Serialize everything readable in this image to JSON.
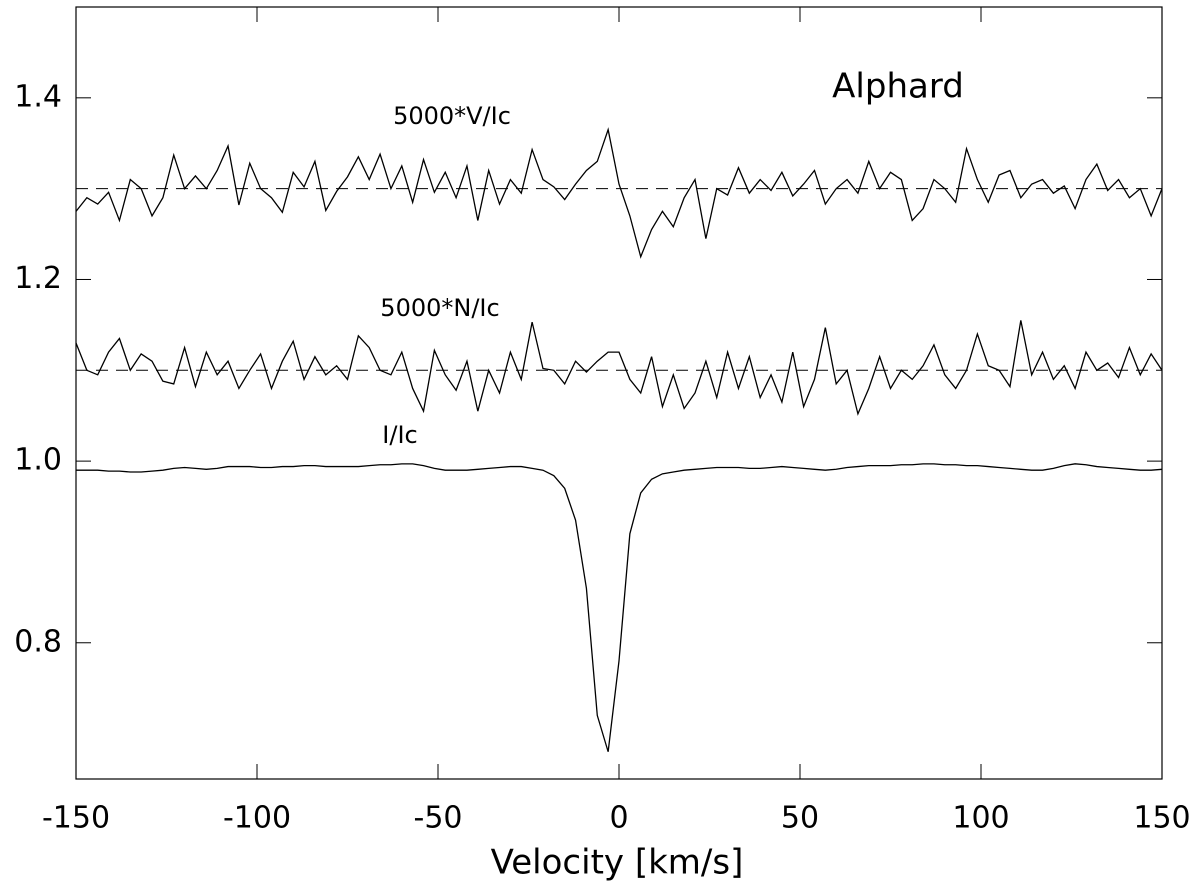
{
  "chart_data": {
    "type": "line",
    "title": "Alphard",
    "xlabel": "Velocity [km/s]",
    "xlim": [
      -150,
      150
    ],
    "ylim": [
      0.65,
      1.5
    ],
    "xticks": [
      -150,
      -100,
      -50,
      0,
      50,
      100,
      150
    ],
    "yticks": [
      0.8,
      {
        "value": 1,
        "label": "1.0"
      },
      1.2,
      1.4
    ],
    "reference_lines": [
      1.3,
      1.1
    ],
    "x": [
      -150,
      -147,
      -144,
      -141,
      -138,
      -135,
      -132,
      -129,
      -126,
      -123,
      -120,
      -117,
      -114,
      -111,
      -108,
      -105,
      -102,
      -99,
      -96,
      -93,
      -90,
      -87,
      -84,
      -81,
      -78,
      -75,
      -72,
      -69,
      -66,
      -63,
      -60,
      -57,
      -54,
      -51,
      -48,
      -45,
      -42,
      -39,
      -36,
      -33,
      -30,
      -27,
      -24,
      -21,
      -18,
      -15,
      -12,
      -9,
      -6,
      -3,
      0,
      3,
      6,
      9,
      12,
      15,
      18,
      21,
      24,
      27,
      30,
      33,
      36,
      39,
      42,
      45,
      48,
      51,
      54,
      57,
      60,
      63,
      66,
      69,
      72,
      75,
      78,
      81,
      84,
      87,
      90,
      93,
      96,
      99,
      102,
      105,
      108,
      111,
      114,
      117,
      120,
      123,
      126,
      129,
      132,
      135,
      138,
      141,
      144,
      147,
      150
    ],
    "series": [
      {
        "name": "5000*V/Ic",
        "color": "#000000",
        "values": [
          1.275,
          1.29,
          1.283,
          1.296,
          1.265,
          1.31,
          1.3,
          1.27,
          1.29,
          1.337,
          1.3,
          1.314,
          1.3,
          1.32,
          1.347,
          1.282,
          1.328,
          1.3,
          1.29,
          1.274,
          1.318,
          1.302,
          1.33,
          1.276,
          1.297,
          1.313,
          1.335,
          1.31,
          1.338,
          1.3,
          1.325,
          1.285,
          1.332,
          1.296,
          1.318,
          1.29,
          1.325,
          1.265,
          1.32,
          1.283,
          1.31,
          1.295,
          1.343,
          1.31,
          1.302,
          1.288,
          1.305,
          1.32,
          1.33,
          1.365,
          1.305,
          1.27,
          1.225,
          1.255,
          1.275,
          1.258,
          1.29,
          1.31,
          1.245,
          1.3,
          1.293,
          1.323,
          1.295,
          1.31,
          1.298,
          1.318,
          1.292,
          1.305,
          1.32,
          1.283,
          1.3,
          1.31,
          1.295,
          1.33,
          1.3,
          1.318,
          1.31,
          1.265,
          1.278,
          1.31,
          1.3,
          1.285,
          1.344,
          1.31,
          1.285,
          1.315,
          1.32,
          1.29,
          1.305,
          1.31,
          1.295,
          1.303,
          1.278,
          1.31,
          1.327,
          1.298,
          1.31,
          1.29,
          1.3,
          1.27,
          1.3
        ]
      },
      {
        "name": "5000*N/Ic",
        "color": "#000000",
        "values": [
          1.13,
          1.1,
          1.095,
          1.12,
          1.135,
          1.1,
          1.118,
          1.11,
          1.088,
          1.085,
          1.125,
          1.082,
          1.12,
          1.095,
          1.11,
          1.08,
          1.1,
          1.118,
          1.08,
          1.11,
          1.132,
          1.09,
          1.115,
          1.095,
          1.105,
          1.09,
          1.138,
          1.125,
          1.1,
          1.095,
          1.12,
          1.08,
          1.055,
          1.122,
          1.095,
          1.078,
          1.11,
          1.055,
          1.1,
          1.075,
          1.12,
          1.09,
          1.153,
          1.102,
          1.1,
          1.085,
          1.11,
          1.098,
          1.11,
          1.12,
          1.12,
          1.09,
          1.075,
          1.115,
          1.06,
          1.095,
          1.058,
          1.075,
          1.11,
          1.07,
          1.12,
          1.08,
          1.115,
          1.07,
          1.095,
          1.065,
          1.12,
          1.06,
          1.09,
          1.147,
          1.085,
          1.1,
          1.052,
          1.08,
          1.115,
          1.08,
          1.1,
          1.09,
          1.105,
          1.128,
          1.095,
          1.08,
          1.1,
          1.14,
          1.105,
          1.1,
          1.082,
          1.155,
          1.095,
          1.12,
          1.09,
          1.105,
          1.08,
          1.12,
          1.1,
          1.108,
          1.092,
          1.125,
          1.095,
          1.118,
          1.1
        ]
      },
      {
        "name": "I/Ic",
        "color": "#000000",
        "values": [
          0.99,
          0.99,
          0.99,
          0.989,
          0.989,
          0.988,
          0.988,
          0.989,
          0.99,
          0.992,
          0.993,
          0.992,
          0.991,
          0.992,
          0.994,
          0.994,
          0.994,
          0.993,
          0.993,
          0.994,
          0.994,
          0.995,
          0.995,
          0.994,
          0.994,
          0.994,
          0.994,
          0.995,
          0.996,
          0.996,
          0.997,
          0.997,
          0.995,
          0.992,
          0.99,
          0.99,
          0.99,
          0.991,
          0.992,
          0.993,
          0.994,
          0.994,
          0.992,
          0.99,
          0.984,
          0.97,
          0.935,
          0.86,
          0.72,
          0.68,
          0.78,
          0.92,
          0.965,
          0.98,
          0.986,
          0.988,
          0.99,
          0.991,
          0.992,
          0.993,
          0.993,
          0.993,
          0.992,
          0.992,
          0.993,
          0.994,
          0.993,
          0.992,
          0.991,
          0.99,
          0.991,
          0.993,
          0.994,
          0.995,
          0.995,
          0.995,
          0.996,
          0.996,
          0.997,
          0.997,
          0.996,
          0.996,
          0.995,
          0.995,
          0.994,
          0.993,
          0.992,
          0.991,
          0.99,
          0.99,
          0.992,
          0.995,
          0.997,
          0.996,
          0.994,
          0.993,
          0.992,
          0.991,
          0.99,
          0.99,
          0.991
        ]
      }
    ]
  }
}
